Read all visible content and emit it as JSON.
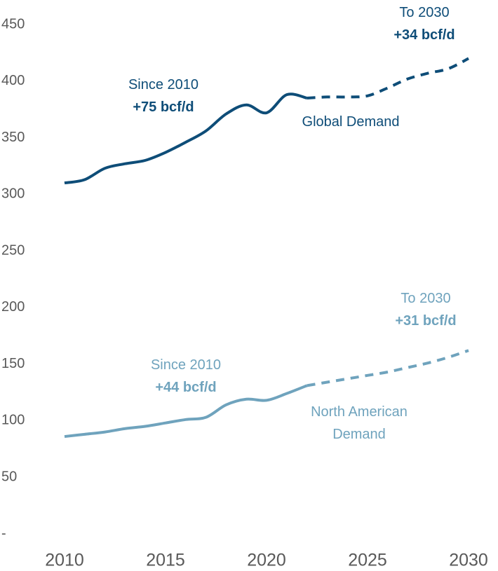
{
  "chart_data": {
    "type": "line",
    "x": [
      2010,
      2011,
      2012,
      2013,
      2014,
      2015,
      2016,
      2017,
      2018,
      2019,
      2020,
      2021,
      2022,
      2023,
      2024,
      2025,
      2026,
      2027,
      2028,
      2029,
      2030
    ],
    "series": [
      {
        "name": "Global Demand",
        "color": "#0e4d78",
        "values": [
          310,
          313,
          323,
          327,
          330,
          337,
          346,
          356,
          371,
          379,
          372,
          388,
          385,
          null,
          null,
          null,
          null,
          null,
          null,
          null,
          null
        ],
        "forecast": [
          null,
          null,
          null,
          null,
          null,
          null,
          null,
          null,
          null,
          null,
          null,
          null,
          385,
          386,
          386,
          387,
          394,
          402,
          407,
          411,
          420
        ]
      },
      {
        "name": "North American Demand",
        "color": "#6fa3bd",
        "values": [
          86,
          88,
          90,
          93,
          95,
          98,
          101,
          103,
          114,
          119,
          118,
          124,
          131,
          null,
          null,
          null,
          null,
          null,
          null,
          null,
          null
        ],
        "forecast": [
          null,
          null,
          null,
          null,
          null,
          null,
          null,
          null,
          null,
          null,
          null,
          null,
          131,
          134,
          137,
          140,
          143,
          147,
          151,
          156,
          162
        ]
      }
    ],
    "annotations": [
      {
        "text": "Since 2010",
        "change": "+75 bcf/d"
      },
      {
        "text": "To 2030",
        "change": "+34 bcf/d"
      },
      {
        "text": "Since 2010",
        "change": "+44 bcf/d"
      },
      {
        "text": "To 2030",
        "change": "+31 bcf/d"
      }
    ],
    "xlim": [
      2010,
      2030
    ],
    "xticks": [
      2010,
      2015,
      2020,
      2025,
      2030
    ],
    "ylim": [
      0,
      450
    ],
    "yticks": [
      {
        "value": 0,
        "label": "-"
      },
      50,
      100,
      150,
      200,
      250,
      300,
      350,
      400,
      450
    ],
    "grid": false
  }
}
